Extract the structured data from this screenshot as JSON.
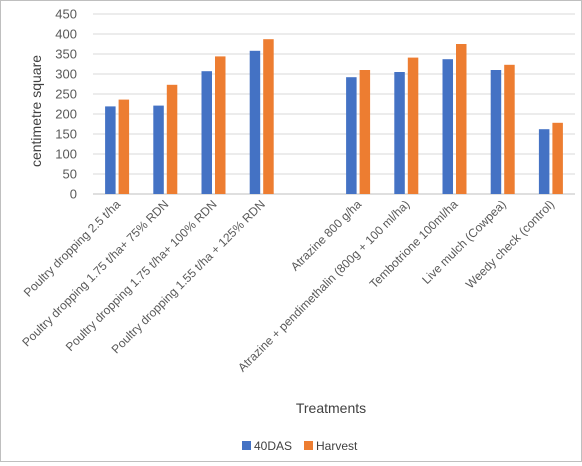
{
  "chart_data": {
    "type": "bar",
    "title": "",
    "xlabel": "Treatments",
    "ylabel": "centimetre square",
    "ylim": [
      0,
      450
    ],
    "yticks": [
      0,
      50,
      100,
      150,
      200,
      250,
      300,
      350,
      400,
      450
    ],
    "grid": true,
    "legend_position": "bottom",
    "categories": [
      "Poultry dropping 2.5 t/ha",
      "Poultry dropping 1.75 t/ha+ 75% RDN",
      "Poultry dropping 1.75 t/ha+ 100% RDN",
      "Poultry dropping 1.55 t/ha + 125% RDN",
      "",
      "Atrazine 800 g/ha",
      "Atrazine + pendimethalin (800g + 100 ml/ha)",
      "Tembotrione 100ml/ha",
      "Live mulch (Cowpea)",
      "Weedy check (control)"
    ],
    "series": [
      {
        "name": "40DAS",
        "color": "#4472c4",
        "values": [
          219,
          221,
          307,
          358,
          null,
          292,
          305,
          337,
          310,
          162
        ]
      },
      {
        "name": "Harvest",
        "color": "#ed7d31",
        "values": [
          236,
          273,
          344,
          387,
          null,
          310,
          341,
          375,
          323,
          178
        ]
      }
    ]
  }
}
